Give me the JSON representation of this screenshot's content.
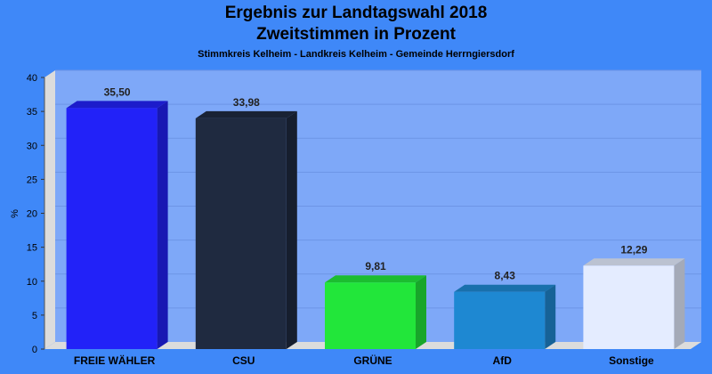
{
  "title_line1": "Ergebnis zur Landtagswahl 2018",
  "title_line2": "Zweitstimmen in Prozent",
  "subtitle": "Stimmkreis Kelheim - Landkreis Kelheim - Gemeinde Herrngiersdorf",
  "chart_data": {
    "type": "bar",
    "categories": [
      "FREIE WÄHLER",
      "CSU",
      "GRÜNE",
      "AfD",
      "Sonstige"
    ],
    "values": [
      35.5,
      33.98,
      9.81,
      8.43,
      12.29
    ],
    "value_labels": [
      "35,50",
      "33,98",
      "9,81",
      "8,43",
      "12,29"
    ],
    "colors": [
      "#2222f8",
      "#1f2a40",
      "#22e63a",
      "#1e88d2",
      "#e4ecff"
    ],
    "ylabel": "%",
    "ylim": [
      0,
      40
    ],
    "yticks": [
      "0",
      "5",
      "10",
      "15",
      "20",
      "25",
      "30",
      "35",
      "40"
    ],
    "grid": true,
    "background": "#3f88f8",
    "plot_background": "#7ea8f8"
  }
}
